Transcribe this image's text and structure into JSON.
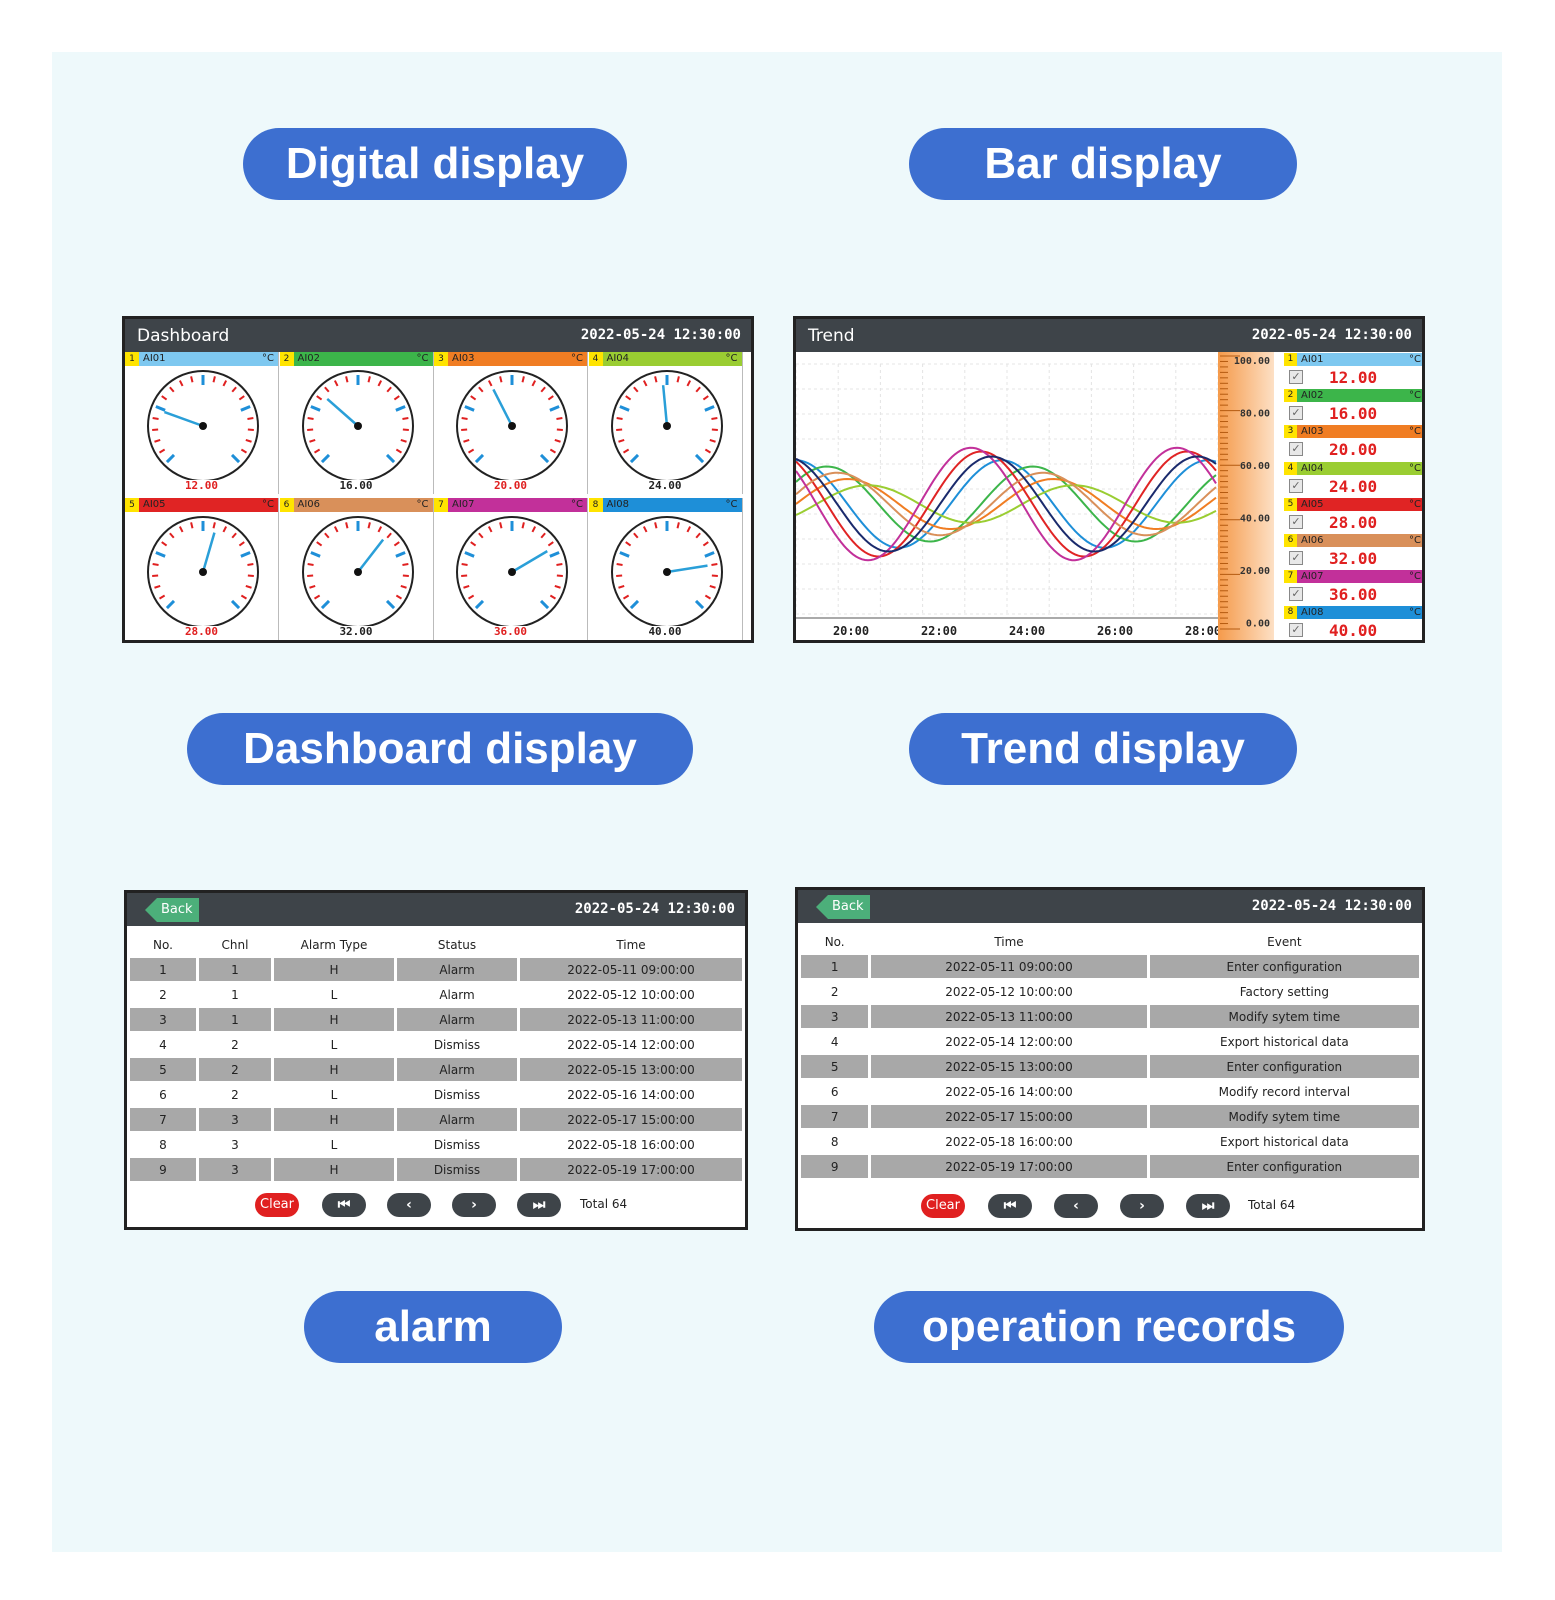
{
  "labels": {
    "digital": "Digital display",
    "bar": "Bar display",
    "dashboard": "Dashboard display",
    "trend": "Trend display",
    "alarm": "alarm",
    "operation": "operation records"
  },
  "dashboard": {
    "title": "Dashboard",
    "datetime": "2022-05-24 12:30:00",
    "unit": "°C",
    "channels": [
      {
        "num": "1",
        "name": "AI01",
        "value": "12.00",
        "color": "#7ec8f0",
        "value_color": "#e02020",
        "reading": 12
      },
      {
        "num": "2",
        "name": "AI02",
        "value": "16.00",
        "color": "#3cb54a",
        "value_color": "#222222",
        "reading": 16
      },
      {
        "num": "3",
        "name": "AI03",
        "value": "20.00",
        "color": "#f07d23",
        "value_color": "#e02020",
        "reading": 20
      },
      {
        "num": "4",
        "name": "AI04",
        "value": "24.00",
        "color": "#9acd32",
        "value_color": "#222222",
        "reading": 24
      },
      {
        "num": "5",
        "name": "AI05",
        "value": "28.00",
        "color": "#e02424",
        "value_color": "#e02020",
        "reading": 28
      },
      {
        "num": "6",
        "name": "AI06",
        "value": "32.00",
        "color": "#d9905a",
        "value_color": "#222222",
        "reading": 32
      },
      {
        "num": "7",
        "name": "AI07",
        "value": "36.00",
        "color": "#c2309a",
        "value_color": "#e02020",
        "reading": 36
      },
      {
        "num": "8",
        "name": "AI08",
        "value": "40.00",
        "color": "#1e8fd8",
        "value_color": "#222222",
        "reading": 40
      }
    ]
  },
  "trend": {
    "title": "Trend",
    "datetime": "2022-05-24 12:30:00",
    "unit": "°C",
    "x_ticks": [
      "20:00",
      "22:00",
      "24:00",
      "26:00",
      "28:00"
    ],
    "y_ticks": [
      "100.00",
      "80.00",
      "60.00",
      "40.00",
      "20.00",
      "0.00"
    ],
    "check_glyph": "✓",
    "channels": [
      {
        "num": "1",
        "name": "AI01",
        "value": "12.00",
        "color": "#7ec8f0",
        "line": "#1e8fd8"
      },
      {
        "num": "2",
        "name": "AI02",
        "value": "16.00",
        "color": "#3cb54a",
        "line": "#3cb54a"
      },
      {
        "num": "3",
        "name": "AI03",
        "value": "20.00",
        "color": "#f07d23",
        "line": "#f07d23"
      },
      {
        "num": "4",
        "name": "AI04",
        "value": "24.00",
        "color": "#9acd32",
        "line": "#9acd32"
      },
      {
        "num": "5",
        "name": "AI05",
        "value": "28.00",
        "color": "#e02424",
        "line": "#e02424"
      },
      {
        "num": "6",
        "name": "AI06",
        "value": "32.00",
        "color": "#d9905a",
        "line": "#d9905a"
      },
      {
        "num": "7",
        "name": "AI07",
        "value": "36.00",
        "color": "#c2309a",
        "line": "#c2309a"
      },
      {
        "num": "8",
        "name": "AI08",
        "value": "40.00",
        "color": "#1e8fd8",
        "line": "#1a2a6c"
      }
    ]
  },
  "alarm": {
    "back": "Back",
    "datetime": "2022-05-24 12:30:00",
    "headers": [
      "No.",
      "Chnl",
      "Alarm Type",
      "Status",
      "Time"
    ],
    "rows": [
      [
        "1",
        "1",
        "H",
        "Alarm",
        "2022-05-11 09:00:00"
      ],
      [
        "2",
        "1",
        "L",
        "Alarm",
        "2022-05-12 10:00:00"
      ],
      [
        "3",
        "1",
        "H",
        "Alarm",
        "2022-05-13 11:00:00"
      ],
      [
        "4",
        "2",
        "L",
        "Dismiss",
        "2022-05-14 12:00:00"
      ],
      [
        "5",
        "2",
        "H",
        "Alarm",
        "2022-05-15 13:00:00"
      ],
      [
        "6",
        "2",
        "L",
        "Dismiss",
        "2022-05-16 14:00:00"
      ],
      [
        "7",
        "3",
        "H",
        "Alarm",
        "2022-05-17 15:00:00"
      ],
      [
        "8",
        "3",
        "L",
        "Dismiss",
        "2022-05-18 16:00:00"
      ],
      [
        "9",
        "3",
        "H",
        "Dismiss",
        "2022-05-19 17:00:00"
      ]
    ],
    "clear": "Clear",
    "nav": [
      "⏮",
      "‹",
      "›",
      "⏭"
    ],
    "total": "Total 64"
  },
  "operation": {
    "back": "Back",
    "datetime": "2022-05-24 12:30:00",
    "headers": [
      "No.",
      "Time",
      "Event"
    ],
    "rows": [
      [
        "1",
        "2022-05-11 09:00:00",
        "Enter configuration"
      ],
      [
        "2",
        "2022-05-12 10:00:00",
        "Factory setting"
      ],
      [
        "3",
        "2022-05-13 11:00:00",
        "Modify sytem time"
      ],
      [
        "4",
        "2022-05-14 12:00:00",
        "Export historical data"
      ],
      [
        "5",
        "2022-05-15 13:00:00",
        "Enter configuration"
      ],
      [
        "6",
        "2022-05-16 14:00:00",
        "Modify record interval"
      ],
      [
        "7",
        "2022-05-17 15:00:00",
        "Modify sytem time"
      ],
      [
        "8",
        "2022-05-18 16:00:00",
        "Export historical data"
      ],
      [
        "9",
        "2022-05-19 17:00:00",
        "Enter configuration"
      ]
    ],
    "clear": "Clear",
    "nav": [
      "⏮",
      "‹",
      "›",
      "⏭"
    ],
    "total": "Total 64"
  }
}
